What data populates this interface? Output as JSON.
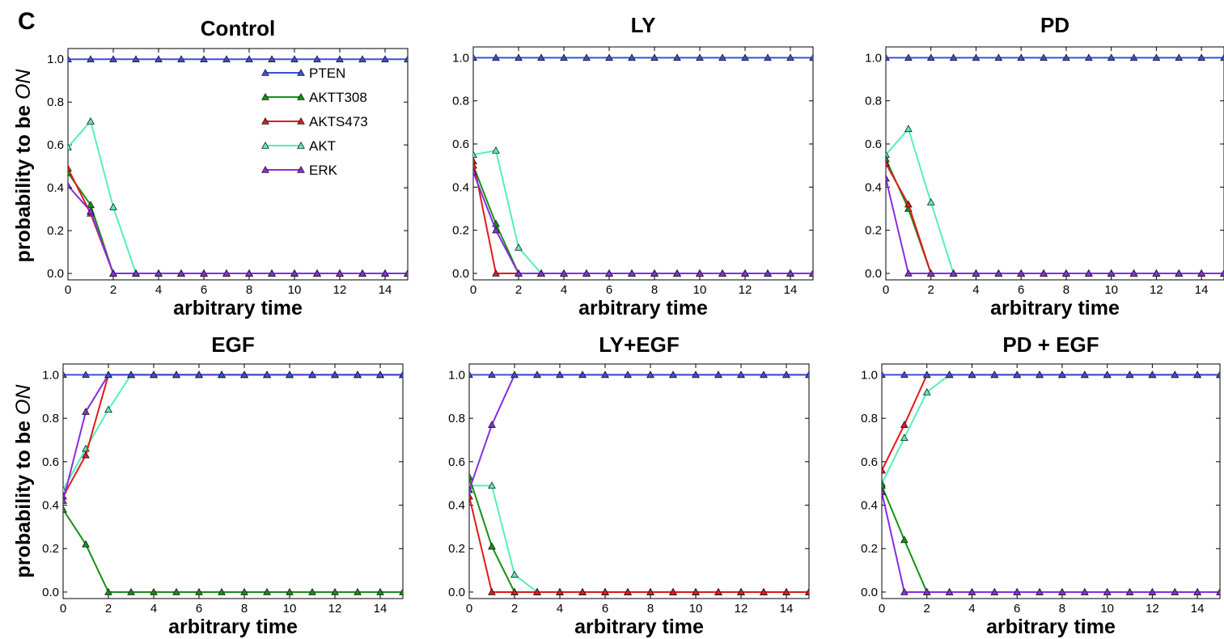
{
  "panel_label": "C",
  "ylabel_prefix": "probability to be ",
  "ylabel_emph": "ON",
  "legend": [
    "PTEN",
    "AKTT308",
    "AKTS473",
    "AKT",
    "ERK"
  ],
  "colors": {
    "PTEN": "#3b4fd8",
    "AKTT308": "#129212",
    "AKTS473": "#e01a1a",
    "AKT": "#54f0b8",
    "ERK": "#8a2be2"
  },
  "chart_data": [
    {
      "type": "line",
      "title": "Control",
      "xlabel": "arbitrary time",
      "xlim": [
        0,
        15
      ],
      "ylim": [
        -0.03,
        1.05
      ],
      "x": [
        0,
        1,
        2,
        3,
        4,
        5,
        6,
        7,
        8,
        9,
        10,
        11,
        12,
        13,
        14,
        15
      ],
      "xticks": [
        "0",
        "2",
        "4",
        "6",
        "8",
        "10",
        "12",
        "14"
      ],
      "yticks": [
        "0.0",
        "0.2",
        "0.4",
        "0.6",
        "0.8",
        "1.0"
      ],
      "series": [
        {
          "name": "PTEN",
          "values": [
            1,
            1,
            1,
            1,
            1,
            1,
            1,
            1,
            1,
            1,
            1,
            1,
            1,
            1,
            1,
            1
          ]
        },
        {
          "name": "AKTT308",
          "values": [
            0.47,
            0.32,
            0,
            0,
            0,
            0,
            0,
            0,
            0,
            0,
            0,
            0,
            0,
            0,
            0,
            0
          ]
        },
        {
          "name": "AKTS473",
          "values": [
            0.49,
            0.28,
            0,
            0,
            0,
            0,
            0,
            0,
            0,
            0,
            0,
            0,
            0,
            0,
            0,
            0
          ]
        },
        {
          "name": "AKT",
          "values": [
            0.59,
            0.71,
            0.31,
            0,
            0,
            0,
            0,
            0,
            0,
            0,
            0,
            0,
            0,
            0,
            0,
            0
          ]
        },
        {
          "name": "ERK",
          "values": [
            0.41,
            0.29,
            0,
            0,
            0,
            0,
            0,
            0,
            0,
            0,
            0,
            0,
            0,
            0,
            0,
            0
          ]
        }
      ]
    },
    {
      "type": "line",
      "title": "LY",
      "xlabel": "arbitrary time",
      "xlim": [
        0,
        15
      ],
      "ylim": [
        -0.03,
        1.05
      ],
      "x": [
        0,
        1,
        2,
        3,
        4,
        5,
        6,
        7,
        8,
        9,
        10,
        11,
        12,
        13,
        14,
        15
      ],
      "xticks": [
        "0",
        "2",
        "4",
        "6",
        "8",
        "10",
        "12",
        "14"
      ],
      "yticks": [
        "0.0",
        "0.2",
        "0.4",
        "0.6",
        "0.8",
        "1.0"
      ],
      "series": [
        {
          "name": "PTEN",
          "values": [
            1,
            1,
            1,
            1,
            1,
            1,
            1,
            1,
            1,
            1,
            1,
            1,
            1,
            1,
            1,
            1
          ]
        },
        {
          "name": "AKTT308",
          "values": [
            0.5,
            0.23,
            0,
            0,
            0,
            0,
            0,
            0,
            0,
            0,
            0,
            0,
            0,
            0,
            0,
            0
          ]
        },
        {
          "name": "AKTS473",
          "values": [
            0.52,
            0,
            0,
            0,
            0,
            0,
            0,
            0,
            0,
            0,
            0,
            0,
            0,
            0,
            0,
            0
          ]
        },
        {
          "name": "AKT",
          "values": [
            0.55,
            0.57,
            0.12,
            0,
            0,
            0,
            0,
            0,
            0,
            0,
            0,
            0,
            0,
            0,
            0,
            0
          ]
        },
        {
          "name": "ERK",
          "values": [
            0.47,
            0.2,
            0,
            0,
            0,
            0,
            0,
            0,
            0,
            0,
            0,
            0,
            0,
            0,
            0,
            0
          ]
        }
      ]
    },
    {
      "type": "line",
      "title": "PD",
      "xlabel": "arbitrary time",
      "xlim": [
        0,
        15
      ],
      "ylim": [
        -0.03,
        1.05
      ],
      "x": [
        0,
        1,
        2,
        3,
        4,
        5,
        6,
        7,
        8,
        9,
        10,
        11,
        12,
        13,
        14,
        15
      ],
      "xticks": [
        "0",
        "2",
        "4",
        "6",
        "8",
        "10",
        "12",
        "14"
      ],
      "yticks": [
        "0.0",
        "0.2",
        "0.4",
        "0.6",
        "0.8",
        "1.0"
      ],
      "series": [
        {
          "name": "PTEN",
          "values": [
            1,
            1,
            1,
            1,
            1,
            1,
            1,
            1,
            1,
            1,
            1,
            1,
            1,
            1,
            1,
            1
          ]
        },
        {
          "name": "AKTT308",
          "values": [
            0.53,
            0.3,
            0,
            0,
            0,
            0,
            0,
            0,
            0,
            0,
            0,
            0,
            0,
            0,
            0,
            0
          ]
        },
        {
          "name": "AKTS473",
          "values": [
            0.51,
            0.32,
            0,
            0,
            0,
            0,
            0,
            0,
            0,
            0,
            0,
            0,
            0,
            0,
            0,
            0
          ]
        },
        {
          "name": "AKT",
          "values": [
            0.55,
            0.67,
            0.33,
            0,
            0,
            0,
            0,
            0,
            0,
            0,
            0,
            0,
            0,
            0,
            0,
            0
          ]
        },
        {
          "name": "ERK",
          "values": [
            0.44,
            0,
            0,
            0,
            0,
            0,
            0,
            0,
            0,
            0,
            0,
            0,
            0,
            0,
            0,
            0
          ]
        }
      ]
    },
    {
      "type": "line",
      "title": "EGF",
      "xlabel": "arbitrary time",
      "xlim": [
        0,
        15
      ],
      "ylim": [
        -0.03,
        1.05
      ],
      "x": [
        0,
        1,
        2,
        3,
        4,
        5,
        6,
        7,
        8,
        9,
        10,
        11,
        12,
        13,
        14,
        15
      ],
      "xticks": [
        "0",
        "2",
        "4",
        "6",
        "8",
        "10",
        "12",
        "14"
      ],
      "yticks": [
        "0.0",
        "0.2",
        "0.4",
        "0.6",
        "0.8",
        "1.0"
      ],
      "series": [
        {
          "name": "PTEN",
          "values": [
            1,
            1,
            1,
            1,
            1,
            1,
            1,
            1,
            1,
            1,
            1,
            1,
            1,
            1,
            1,
            1
          ]
        },
        {
          "name": "AKTT308",
          "values": [
            0.38,
            0.22,
            0,
            0,
            0,
            0,
            0,
            0,
            0,
            0,
            0,
            0,
            0,
            0,
            0,
            0
          ]
        },
        {
          "name": "AKTS473",
          "values": [
            0.44,
            0.63,
            1,
            1,
            1,
            1,
            1,
            1,
            1,
            1,
            1,
            1,
            1,
            1,
            1,
            1
          ]
        },
        {
          "name": "AKT",
          "values": [
            0.47,
            0.66,
            0.84,
            1,
            1,
            1,
            1,
            1,
            1,
            1,
            1,
            1,
            1,
            1,
            1,
            1
          ]
        },
        {
          "name": "ERK",
          "values": [
            0.42,
            0.83,
            1,
            1,
            1,
            1,
            1,
            1,
            1,
            1,
            1,
            1,
            1,
            1,
            1,
            1
          ]
        }
      ]
    },
    {
      "type": "line",
      "title": "LY+EGF",
      "xlabel": "arbitrary time",
      "xlim": [
        0,
        15
      ],
      "ylim": [
        -0.03,
        1.05
      ],
      "x": [
        0,
        1,
        2,
        3,
        4,
        5,
        6,
        7,
        8,
        9,
        10,
        11,
        12,
        13,
        14,
        15
      ],
      "xticks": [
        "0",
        "2",
        "4",
        "6",
        "8",
        "10",
        "12",
        "14"
      ],
      "yticks": [
        "0.0",
        "0.2",
        "0.4",
        "0.6",
        "0.8",
        "1.0"
      ],
      "series": [
        {
          "name": "PTEN",
          "values": [
            1,
            1,
            1,
            1,
            1,
            1,
            1,
            1,
            1,
            1,
            1,
            1,
            1,
            1,
            1,
            1
          ]
        },
        {
          "name": "AKTT308",
          "values": [
            0.53,
            0.21,
            0,
            0,
            0,
            0,
            0,
            0,
            0,
            0,
            0,
            0,
            0,
            0,
            0,
            0
          ]
        },
        {
          "name": "AKTS473",
          "values": [
            0.44,
            0,
            0,
            0,
            0,
            0,
            0,
            0,
            0,
            0,
            0,
            0,
            0,
            0,
            0,
            0
          ]
        },
        {
          "name": "AKT",
          "values": [
            0.49,
            0.49,
            0.08,
            0,
            0,
            0,
            0,
            0,
            0,
            0,
            0,
            0,
            0,
            0,
            0,
            0
          ]
        },
        {
          "name": "ERK",
          "values": [
            0.47,
            0.77,
            1,
            1,
            1,
            1,
            1,
            1,
            1,
            1,
            1,
            1,
            1,
            1,
            1,
            1
          ]
        }
      ]
    },
    {
      "type": "line",
      "title": "PD + EGF",
      "xlabel": "arbitrary time",
      "xlim": [
        0,
        15
      ],
      "ylim": [
        -0.03,
        1.05
      ],
      "x": [
        0,
        1,
        2,
        3,
        4,
        5,
        6,
        7,
        8,
        9,
        10,
        11,
        12,
        13,
        14,
        15
      ],
      "xticks": [
        "0",
        "2",
        "4",
        "6",
        "8",
        "10",
        "12",
        "14"
      ],
      "yticks": [
        "0.0",
        "0.2",
        "0.4",
        "0.6",
        "0.8",
        "1.0"
      ],
      "series": [
        {
          "name": "PTEN",
          "values": [
            1,
            1,
            1,
            1,
            1,
            1,
            1,
            1,
            1,
            1,
            1,
            1,
            1,
            1,
            1,
            1
          ]
        },
        {
          "name": "AKTT308",
          "values": [
            0.49,
            0.24,
            0,
            0,
            0,
            0,
            0,
            0,
            0,
            0,
            0,
            0,
            0,
            0,
            0,
            0
          ]
        },
        {
          "name": "AKTS473",
          "values": [
            0.56,
            0.77,
            1,
            1,
            1,
            1,
            1,
            1,
            1,
            1,
            1,
            1,
            1,
            1,
            1,
            1
          ]
        },
        {
          "name": "AKT",
          "values": [
            0.5,
            0.71,
            0.92,
            1,
            1,
            1,
            1,
            1,
            1,
            1,
            1,
            1,
            1,
            1,
            1,
            1
          ]
        },
        {
          "name": "ERK",
          "values": [
            0.46,
            0,
            0,
            0,
            0,
            0,
            0,
            0,
            0,
            0,
            0,
            0,
            0,
            0,
            0,
            0
          ]
        }
      ]
    }
  ]
}
